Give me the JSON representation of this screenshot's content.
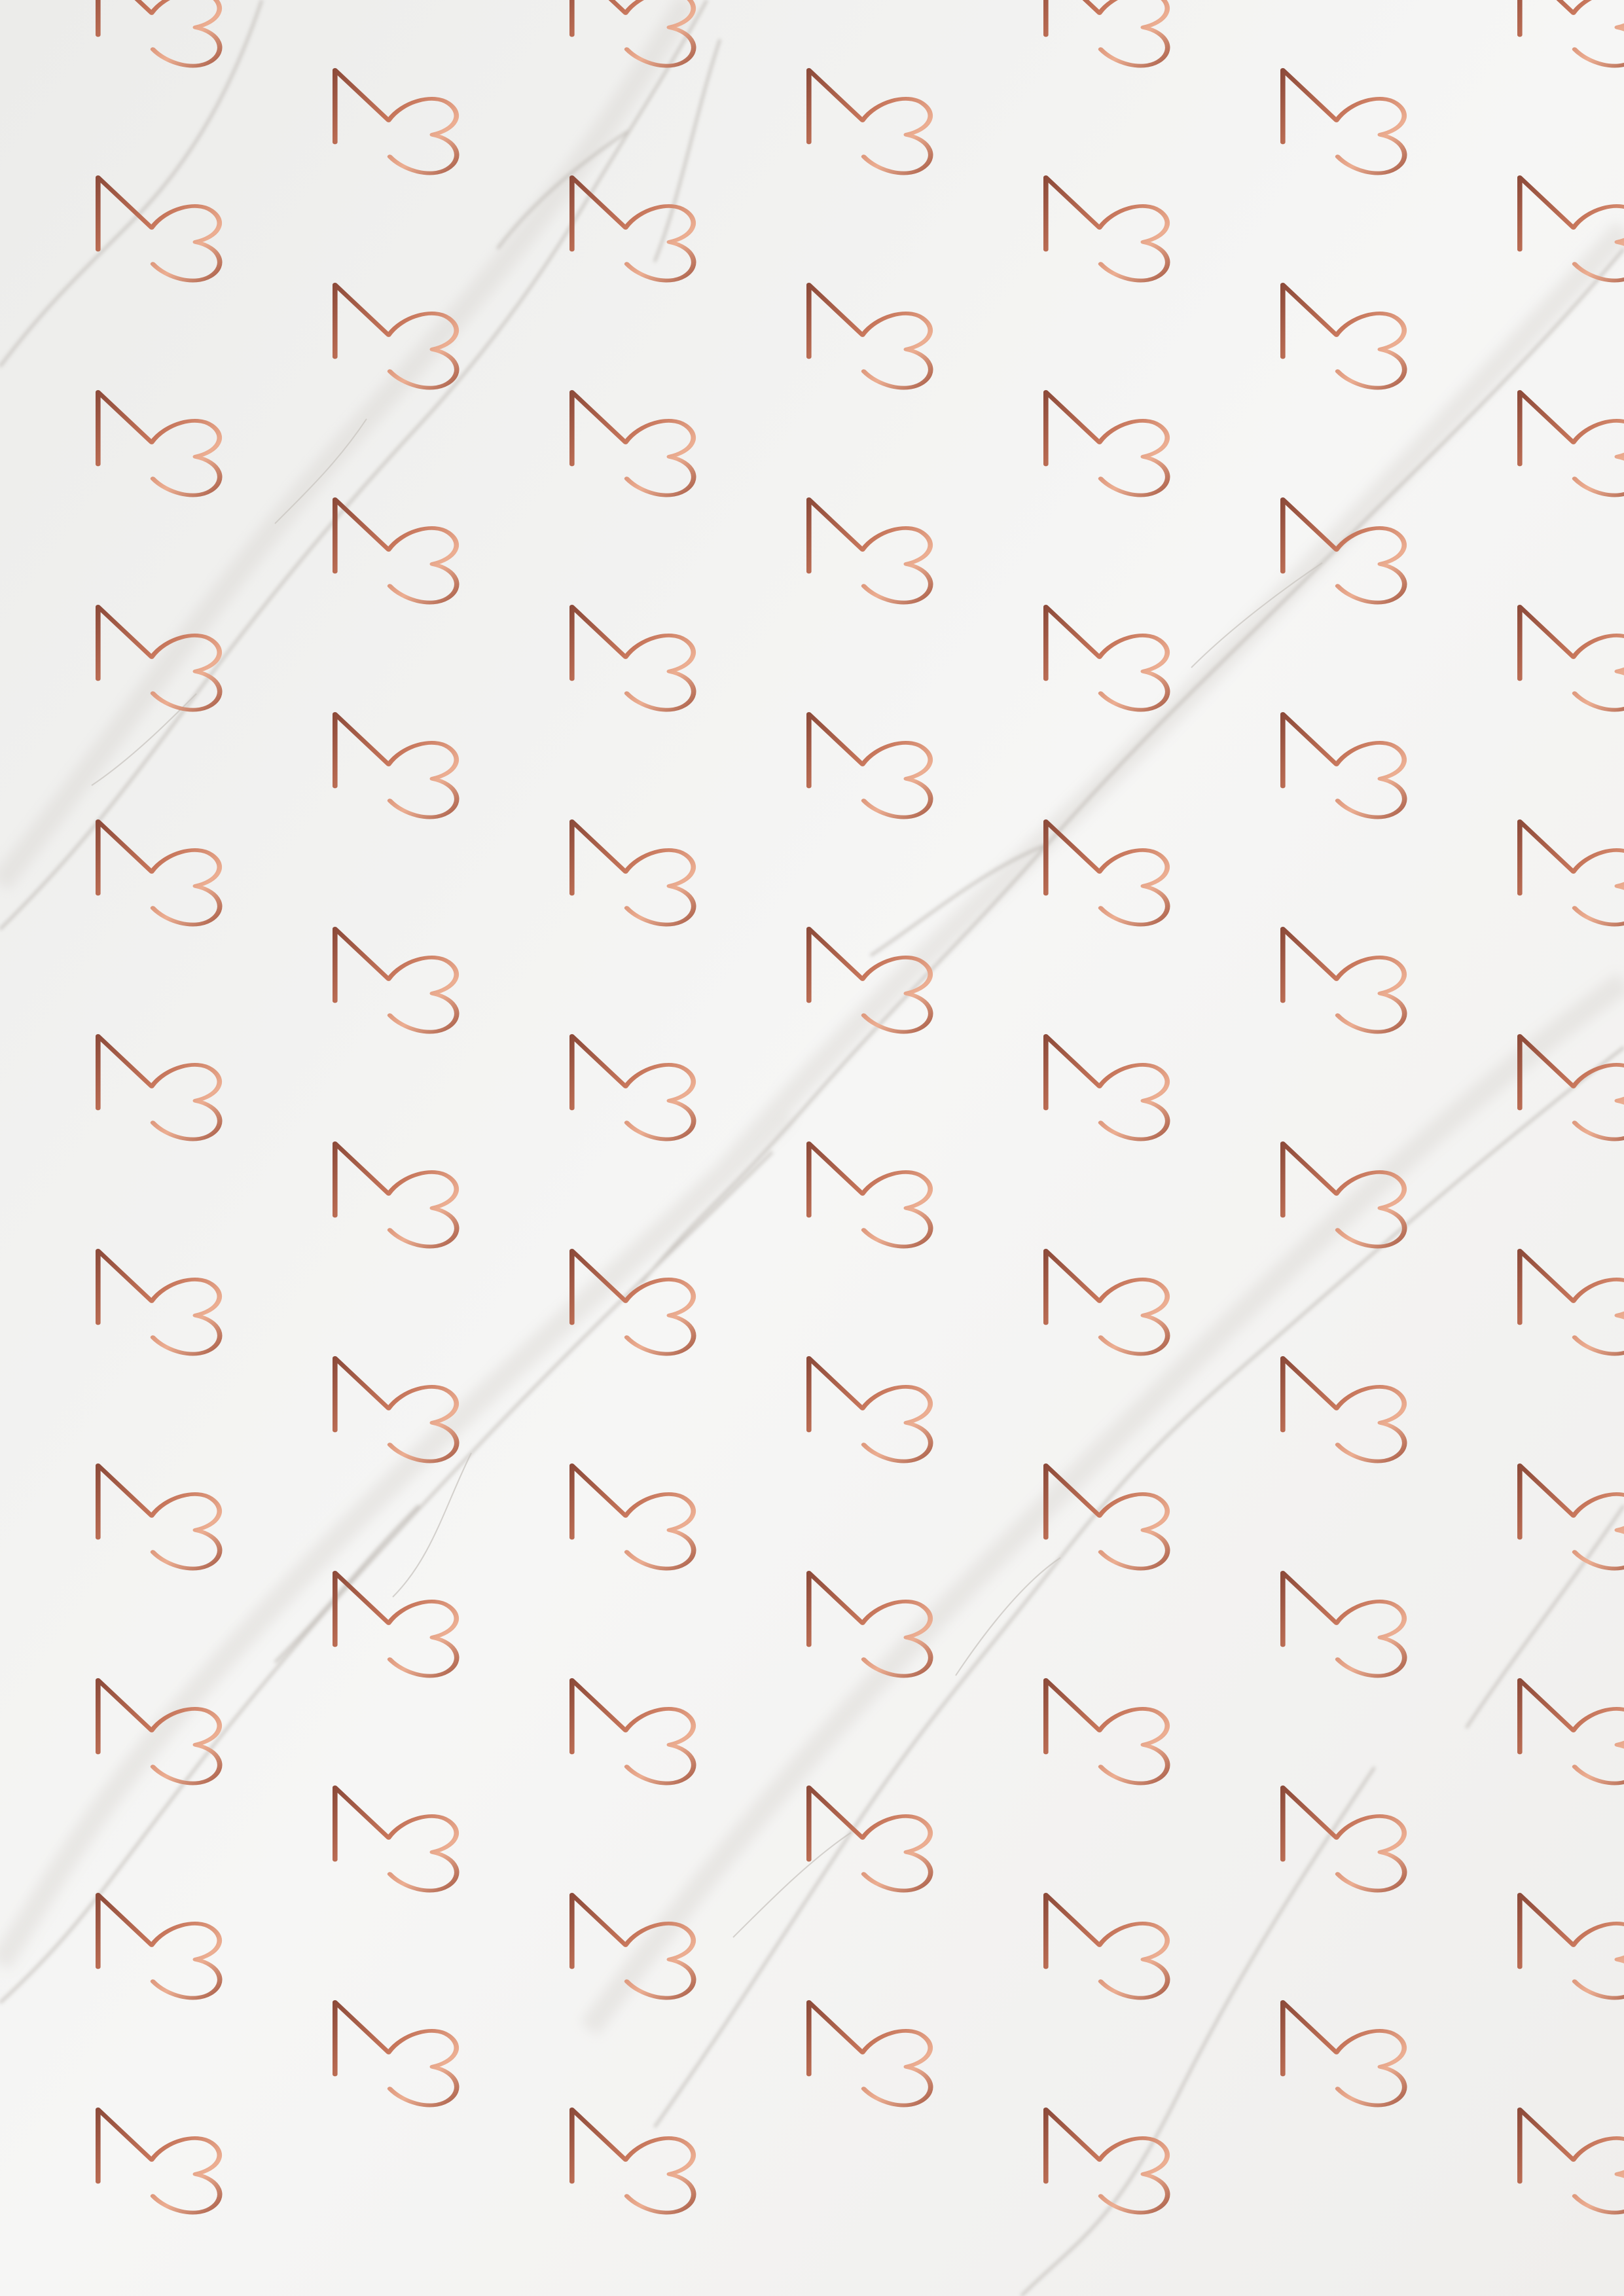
{
  "pattern": {
    "motif": "M3 monogram",
    "motif_icon": "m3-monogram-icon",
    "rows": 21,
    "columns_per_row": [
      4,
      3
    ],
    "colors": {
      "background": "#f3f3f2",
      "vein_light": "#d6d3cf",
      "vein_dark": "#a9a49e",
      "rose_gold_light": "#ecae92",
      "rose_gold_mid": "#c6755a",
      "rose_gold_dark": "#8d4b3a"
    }
  }
}
